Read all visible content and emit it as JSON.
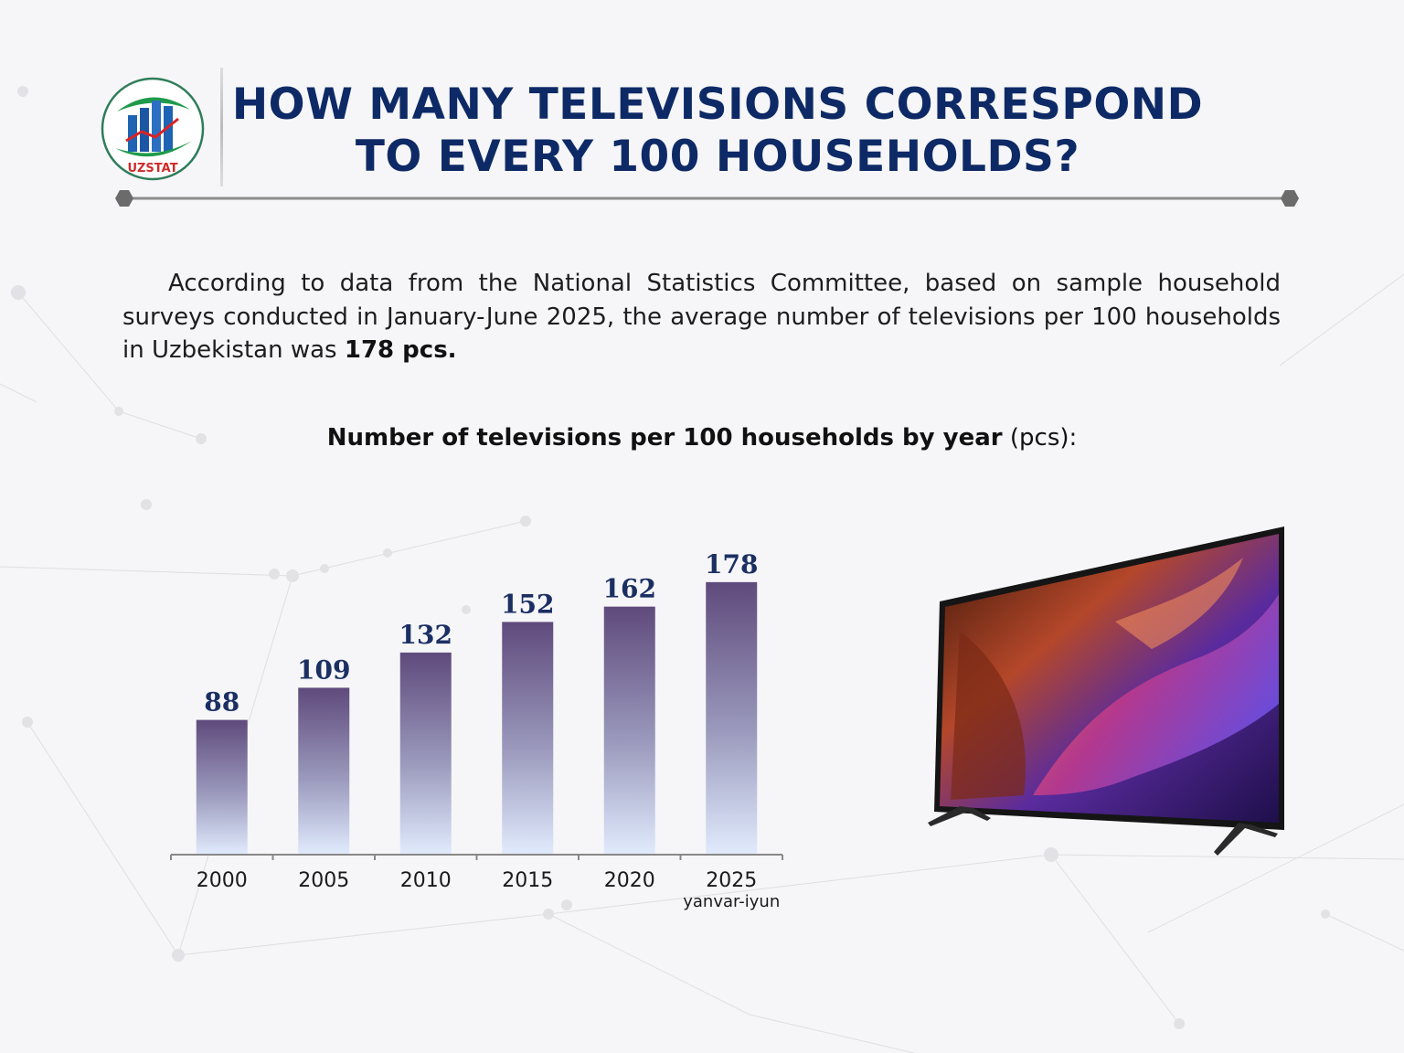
{
  "logo": {
    "text": "UZSTAT"
  },
  "header": {
    "title_line1": "HOW MANY TELEVISIONS CORRESPOND",
    "title_line2": "TO EVERY 100 HOUSEHOLDS?"
  },
  "intro": {
    "text": "According to data from the National Statistics Committee, based on sample household surveys conducted in January-June 2025, the average number of televisions per 100 households in Uzbekistan was ",
    "highlight": "178 pcs."
  },
  "chart_heading": {
    "bold": "Number of televisions per 100 households by year",
    "unit": " (pcs):"
  },
  "chart_data": {
    "type": "bar",
    "title": "Number of televisions per 100 households by year (pcs):",
    "categories": [
      "2000",
      "2005",
      "2010",
      "2015",
      "2020",
      "2025"
    ],
    "category_sublabels": [
      "",
      "",
      "",
      "",
      "",
      "yanvar-iyun"
    ],
    "values": [
      88,
      109,
      132,
      152,
      162,
      178
    ],
    "ylim": [
      0,
      200
    ],
    "xlabel": "",
    "ylabel": "",
    "grid": false,
    "colors": {
      "bar_top": "#5f4a7c",
      "bar_bottom": "#dfe8fb",
      "label": "#1b2f63",
      "axis": "#888888"
    }
  }
}
